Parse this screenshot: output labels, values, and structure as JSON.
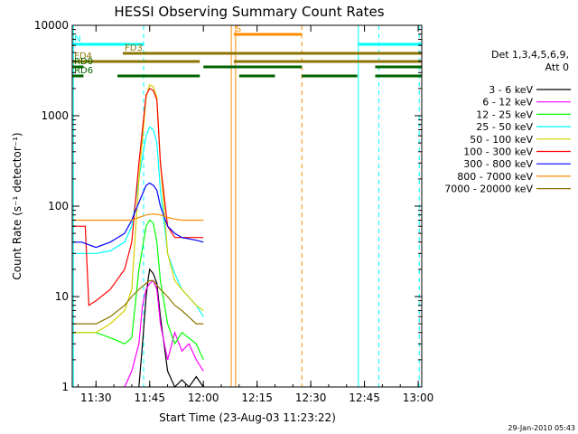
{
  "chart_data": {
    "type": "line",
    "title": "HESSI Observing Summary Count Rates",
    "xlabel": "Start Time (23-Aug-03 11:23:22)",
    "ylabel": "Count Rate (s⁻¹ detector⁻¹)",
    "timestamp": "29-Jan-2010 05:43",
    "xlim": [
      23.37,
      121.0
    ],
    "ylim": [
      1,
      10000
    ],
    "yscale": "log",
    "x_unit": "minutes after 11:00",
    "x_ticks": [
      {
        "x": 30,
        "label": "11:30"
      },
      {
        "x": 45,
        "label": "11:45"
      },
      {
        "x": 60,
        "label": "12:00"
      },
      {
        "x": 75,
        "label": "12:15"
      },
      {
        "x": 90,
        "label": "12:30"
      },
      {
        "x": 105,
        "label": "12:45"
      },
      {
        "x": 120,
        "label": "13:00"
      }
    ],
    "y_ticks": [
      {
        "y": 1,
        "label": "1"
      },
      {
        "y": 10,
        "label": "10"
      },
      {
        "y": 100,
        "label": "100"
      },
      {
        "y": 1000,
        "label": "1000"
      },
      {
        "y": 10000,
        "label": "10000"
      }
    ],
    "legend": {
      "header": [
        "Det 1,3,4,5,6,9,",
        "Att 0"
      ],
      "placement": "right"
    },
    "series": [
      {
        "name": "3 - 6 keV",
        "color": "#000000",
        "x": [
          42,
          43,
          44,
          44.5,
          45,
          46,
          47,
          48,
          50,
          52,
          54,
          56,
          58,
          60
        ],
        "y": [
          1,
          3,
          10,
          15,
          20,
          18,
          14,
          6,
          1.5,
          1,
          1.2,
          1,
          1.3,
          1
        ]
      },
      {
        "name": "6 - 12 keV",
        "color": "#ff00ff",
        "x": [
          38,
          40,
          42,
          43,
          44,
          45,
          46,
          47,
          48,
          50,
          52,
          54,
          56,
          58,
          60
        ],
        "y": [
          1,
          1.5,
          3,
          8,
          12,
          14,
          15,
          12,
          5,
          2,
          4,
          2.5,
          3,
          2,
          1.5
        ]
      },
      {
        "name": "12 - 25 keV",
        "color": "#00ff00",
        "x": [
          23.4,
          30,
          34,
          38,
          40,
          42,
          44,
          45,
          46,
          47,
          48,
          50,
          52,
          54,
          58,
          60
        ],
        "y": [
          4,
          4,
          3.5,
          3,
          3.5,
          20,
          60,
          70,
          65,
          40,
          15,
          5,
          3,
          4,
          3,
          2
        ]
      },
      {
        "name": "25 - 50 keV",
        "color": "#00ffff",
        "x": [
          23.4,
          27,
          30,
          34,
          38,
          40,
          42,
          44,
          45,
          46,
          47,
          48,
          50,
          52,
          54,
          58,
          60
        ],
        "y": [
          30,
          30,
          30,
          32,
          40,
          60,
          200,
          600,
          750,
          700,
          500,
          150,
          30,
          18,
          12,
          8,
          6
        ]
      },
      {
        "name": "50 - 100 keV",
        "color": "#d2d200",
        "x": [
          23.4,
          27,
          30,
          34,
          38,
          40,
          42,
          44,
          45,
          46,
          47,
          48,
          50,
          52,
          54,
          58,
          60
        ],
        "y": [
          4,
          4,
          4,
          5,
          7,
          12,
          200,
          1600,
          2200,
          2100,
          1600,
          300,
          30,
          15,
          12,
          8,
          7
        ]
      },
      {
        "name": "100 - 300 keV",
        "color": "#ff0000",
        "x": [
          23.4,
          26,
          27,
          28,
          30,
          34,
          38,
          40,
          42,
          44,
          45,
          46,
          47,
          48,
          50,
          52,
          54,
          58,
          60
        ],
        "y": [
          60,
          60,
          60,
          8,
          9,
          12,
          20,
          40,
          300,
          1700,
          2000,
          1900,
          1500,
          300,
          60,
          45,
          45,
          45,
          45
        ]
      },
      {
        "name": "300 - 800 keV",
        "color": "#0000ff",
        "x": [
          23.4,
          26,
          30,
          34,
          38,
          40,
          42,
          44,
          45,
          46,
          47,
          48,
          50,
          52,
          54,
          58,
          60
        ],
        "y": [
          40,
          40,
          35,
          40,
          50,
          70,
          110,
          170,
          180,
          170,
          150,
          100,
          60,
          50,
          45,
          42,
          40
        ]
      },
      {
        "name": "800 - 7000 keV",
        "color": "#ff8c00",
        "x": [
          23.4,
          26,
          30,
          34,
          38,
          40,
          42,
          44,
          46,
          48,
          50,
          52,
          54,
          58,
          60
        ],
        "y": [
          70,
          70,
          70,
          70,
          70,
          70,
          75,
          80,
          82,
          80,
          75,
          72,
          70,
          70,
          70
        ]
      },
      {
        "name": "7000 - 20000 keV",
        "color": "#8b7500",
        "x": [
          23.4,
          26,
          30,
          34,
          38,
          40,
          42,
          44,
          45,
          46,
          48,
          50,
          52,
          54,
          58,
          60
        ],
        "y": [
          5,
          5,
          5,
          6,
          8,
          10,
          12,
          14,
          15,
          15,
          12,
          10,
          8,
          7,
          5,
          5
        ]
      }
    ],
    "bands": [
      {
        "label": "N",
        "color": "#00ffff",
        "segments": [
          [
            23.4,
            43.3
          ],
          [
            103.3,
            121
          ]
        ]
      },
      {
        "label": "S",
        "color": "#ff8c00",
        "segments": [
          [
            68.5,
            87.5
          ]
        ]
      },
      {
        "label": "FD3",
        "color": "#8b7500",
        "segments": [
          [
            37.5,
            121
          ]
        ]
      },
      {
        "label": "FD4",
        "color": "#8b7500",
        "segments": [
          [
            23.4,
            59
          ],
          [
            68.5,
            121
          ]
        ]
      },
      {
        "label": "RD0",
        "color": "#006400",
        "segments": [
          [
            23.4,
            26.5
          ],
          [
            60,
            87.5
          ],
          [
            108,
            121
          ]
        ]
      },
      {
        "label": "RD6",
        "color": "#006400",
        "segments": [
          [
            23.4,
            26.5
          ],
          [
            36,
            59
          ],
          [
            70,
            80
          ],
          [
            87.5,
            103
          ],
          [
            108,
            121
          ]
        ]
      }
    ],
    "vlines": [
      {
        "x": 23.7,
        "color": "#00ffff",
        "style": "solid"
      },
      {
        "x": 43.3,
        "color": "#00ffff",
        "style": "dashed"
      },
      {
        "x": 67.8,
        "color": "#ff8c00",
        "style": "solid"
      },
      {
        "x": 69.0,
        "color": "#ff8c00",
        "style": "solid"
      },
      {
        "x": 87.5,
        "color": "#ff8c00",
        "style": "dashed"
      },
      {
        "x": 103.3,
        "color": "#00ffff",
        "style": "solid"
      },
      {
        "x": 109.0,
        "color": "#00ffff",
        "style": "dashed"
      },
      {
        "x": 120.3,
        "color": "#00ffff",
        "style": "dashed"
      }
    ]
  }
}
